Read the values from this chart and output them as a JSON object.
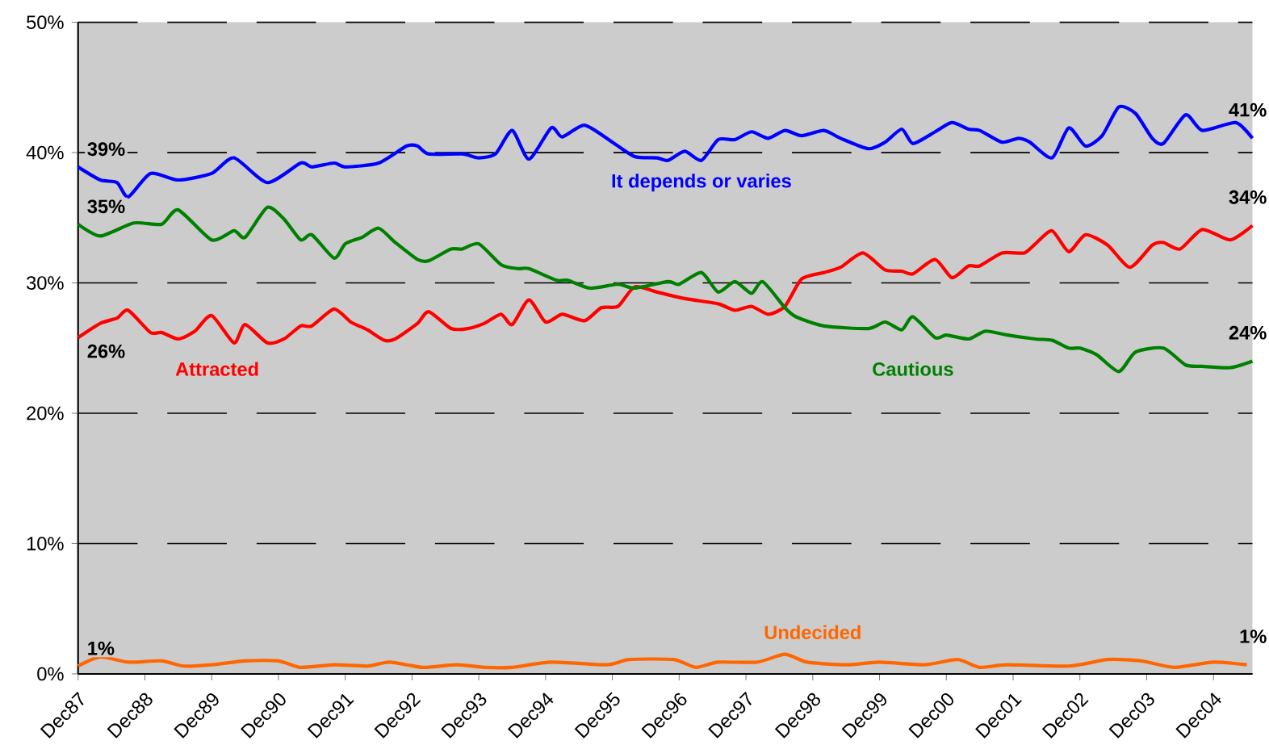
{
  "chart_data": {
    "type": "line",
    "xlim": [
      "1987-12",
      "2005-07"
    ],
    "ylim": [
      0,
      50
    ],
    "xticks": [
      {
        "value": "1987-12",
        "label": "Dec87"
      },
      {
        "value": "1988-12",
        "label": "Dec88"
      },
      {
        "value": "1989-12",
        "label": "Dec89"
      },
      {
        "value": "1990-12",
        "label": "Dec90"
      },
      {
        "value": "1991-12",
        "label": "Dec91"
      },
      {
        "value": "1992-12",
        "label": "Dec92"
      },
      {
        "value": "1993-12",
        "label": "Dec93"
      },
      {
        "value": "1994-12",
        "label": "Dec94"
      },
      {
        "value": "1995-12",
        "label": "Dec95"
      },
      {
        "value": "1996-12",
        "label": "Dec96"
      },
      {
        "value": "1997-12",
        "label": "Dec97"
      },
      {
        "value": "1998-12",
        "label": "Dec98"
      },
      {
        "value": "1999-12",
        "label": "Dec99"
      },
      {
        "value": "2000-12",
        "label": "Dec00"
      },
      {
        "value": "2001-12",
        "label": "Dec01"
      },
      {
        "value": "2002-12",
        "label": "Dec02"
      },
      {
        "value": "2003-12",
        "label": "Dec03"
      },
      {
        "value": "2004-12",
        "label": "Dec04"
      }
    ],
    "yticks": [
      {
        "value": 0,
        "label": "0%"
      },
      {
        "value": 10,
        "label": "10%"
      },
      {
        "value": 20,
        "label": "20%"
      },
      {
        "value": 30,
        "label": "30%"
      },
      {
        "value": 40,
        "label": "40%"
      },
      {
        "value": 50,
        "label": "50%"
      }
    ],
    "grid": "y",
    "legend": false,
    "marker": "none",
    "line_style": "solid",
    "series": [
      {
        "name": "It depends or varies",
        "color": "#0000ff",
        "x": [
          "1987-12",
          "1988-04",
          "1988-07",
          "1988-09",
          "1989-01",
          "1989-06",
          "1989-12",
          "1990-04",
          "1990-10",
          "1991-04",
          "1991-06",
          "1991-10",
          "1991-12",
          "1992-06",
          "1992-11",
          "1993-01",
          "1993-03",
          "1993-09",
          "1993-12",
          "1994-03",
          "1994-06",
          "1994-09",
          "1995-01",
          "1995-03",
          "1995-07",
          "1995-12",
          "1996-04",
          "1996-08",
          "1996-10",
          "1997-01",
          "1997-04",
          "1997-07",
          "1997-10",
          "1998-01",
          "1998-04",
          "1998-07",
          "1998-10",
          "1999-02",
          "1999-05",
          "1999-10",
          "2000-01",
          "2000-04",
          "2000-06",
          "2000-10",
          "2001-01",
          "2001-04",
          "2001-06",
          "2001-10",
          "2002-01",
          "2002-03",
          "2002-07",
          "2002-10",
          "2003-01",
          "2003-04",
          "2003-07",
          "2003-10",
          "2004-01",
          "2004-03",
          "2004-07",
          "2004-10",
          "2005-04",
          "2005-07"
        ],
        "values": [
          38.9,
          37.9,
          37.7,
          36.6,
          38.4,
          37.9,
          38.4,
          39.6,
          37.7,
          39.2,
          38.9,
          39.2,
          38.9,
          39.2,
          40.5,
          40.5,
          39.9,
          39.9,
          39.6,
          39.9,
          41.7,
          39.5,
          41.9,
          41.2,
          42.1,
          40.8,
          39.7,
          39.6,
          39.4,
          40.1,
          39.4,
          41.0,
          41.0,
          41.6,
          41.1,
          41.7,
          41.3,
          41.7,
          41.1,
          40.3,
          40.8,
          41.8,
          40.7,
          41.6,
          42.3,
          41.8,
          41.7,
          40.8,
          41.1,
          40.8,
          39.6,
          41.9,
          40.5,
          41.3,
          43.5,
          43.0,
          41.1,
          40.7,
          42.9,
          41.7,
          42.3,
          41.1
        ]
      },
      {
        "name": "Attracted",
        "color": "#ff0000",
        "x": [
          "1987-12",
          "1988-04",
          "1988-07",
          "1988-09",
          "1989-01",
          "1989-03",
          "1989-06",
          "1989-09",
          "1989-12",
          "1990-04",
          "1990-06",
          "1990-10",
          "1991-01",
          "1991-04",
          "1991-06",
          "1991-10",
          "1992-01",
          "1992-04",
          "1992-07",
          "1992-09",
          "1993-01",
          "1993-03",
          "1993-07",
          "1993-10",
          "1994-01",
          "1994-04",
          "1994-06",
          "1994-09",
          "1994-12",
          "1995-03",
          "1995-07",
          "1995-10",
          "1996-01",
          "1996-04",
          "1996-08",
          "1997-01",
          "1997-07",
          "1997-10",
          "1998-01",
          "1998-04",
          "1998-07",
          "1998-10",
          "1999-02",
          "1999-05",
          "1999-09",
          "2000-01",
          "2000-04",
          "2000-06",
          "2000-10",
          "2001-01",
          "2001-04",
          "2001-06",
          "2001-10",
          "2002-02",
          "2002-04",
          "2002-07",
          "2002-10",
          "2003-01",
          "2003-05",
          "2003-09",
          "2004-01",
          "2004-03",
          "2004-06",
          "2004-10",
          "2005-03",
          "2005-07"
        ],
        "values": [
          25.8,
          26.9,
          27.3,
          27.9,
          26.2,
          26.2,
          25.7,
          26.3,
          27.5,
          25.4,
          26.8,
          25.4,
          25.7,
          26.7,
          26.7,
          28.0,
          27.0,
          26.4,
          25.6,
          25.7,
          26.9,
          27.8,
          26.5,
          26.5,
          26.9,
          27.6,
          26.8,
          28.7,
          27.0,
          27.6,
          27.1,
          28.1,
          28.2,
          29.7,
          29.3,
          28.8,
          28.4,
          27.9,
          28.2,
          27.6,
          28.2,
          30.3,
          30.8,
          31.2,
          32.3,
          31.0,
          30.9,
          30.7,
          31.8,
          30.4,
          31.3,
          31.3,
          32.3,
          32.3,
          33.0,
          34.0,
          32.4,
          33.7,
          32.9,
          31.2,
          32.9,
          33.1,
          32.6,
          34.1,
          33.3,
          34.4
        ]
      },
      {
        "name": "Cautious",
        "color": "#008000",
        "x": [
          "1987-12",
          "1988-04",
          "1988-10",
          "1989-03",
          "1989-06",
          "1989-12",
          "1990-04",
          "1990-06",
          "1990-10",
          "1991-01",
          "1991-04",
          "1991-06",
          "1991-10",
          "1991-12",
          "1992-03",
          "1992-06",
          "1992-09",
          "1993-01",
          "1993-03",
          "1993-07",
          "1993-09",
          "1993-12",
          "1994-04",
          "1994-07",
          "1994-09",
          "1995-02",
          "1995-04",
          "1995-08",
          "1996-01",
          "1996-04",
          "1996-10",
          "1996-12",
          "1997-04",
          "1997-07",
          "1997-10",
          "1998-01",
          "1998-03",
          "1998-07",
          "1998-09",
          "1999-02",
          "1999-10",
          "2000-01",
          "2000-04",
          "2000-06",
          "2000-10",
          "2000-12",
          "2001-04",
          "2001-07",
          "2001-11",
          "2002-04",
          "2002-07",
          "2002-10",
          "2002-12",
          "2003-03",
          "2003-07",
          "2003-10",
          "2004-03",
          "2004-07",
          "2004-10",
          "2005-03",
          "2005-07"
        ],
        "values": [
          34.5,
          33.6,
          34.6,
          34.5,
          35.6,
          33.3,
          34.0,
          33.5,
          35.8,
          34.9,
          33.3,
          33.7,
          31.9,
          33.0,
          33.5,
          34.2,
          33.1,
          31.8,
          31.7,
          32.6,
          32.6,
          33.0,
          31.4,
          31.1,
          31.1,
          30.2,
          30.2,
          29.6,
          29.9,
          29.6,
          30.1,
          29.9,
          30.8,
          29.3,
          30.1,
          29.2,
          30.1,
          28.1,
          27.4,
          26.7,
          26.5,
          27.0,
          26.4,
          27.4,
          25.8,
          26.0,
          25.7,
          26.3,
          26.0,
          25.7,
          25.6,
          25.0,
          25.0,
          24.5,
          23.2,
          24.7,
          25.0,
          23.7,
          23.6,
          23.5,
          24.0
        ]
      },
      {
        "name": "Undecided",
        "color": "#ff6600",
        "x": [
          "1987-12",
          "1988-04",
          "1988-09",
          "1989-03",
          "1989-07",
          "1989-12",
          "1990-06",
          "1990-12",
          "1991-04",
          "1991-10",
          "1992-04",
          "1992-08",
          "1993-02",
          "1993-08",
          "1994-01",
          "1994-06",
          "1995-01",
          "1995-11",
          "1996-03",
          "1996-11",
          "1997-03",
          "1997-07",
          "1998-02",
          "1998-07",
          "1998-11",
          "1999-06",
          "1999-12",
          "2000-08",
          "2001-02",
          "2001-06",
          "2001-11",
          "2002-10",
          "2003-05",
          "2003-11",
          "2004-05",
          "2004-12",
          "2005-06"
        ],
        "values": [
          0.6,
          1.3,
          0.9,
          1.0,
          0.6,
          0.7,
          1.0,
          1.0,
          0.5,
          0.7,
          0.6,
          0.9,
          0.5,
          0.7,
          0.5,
          0.5,
          0.9,
          0.7,
          1.1,
          1.1,
          0.5,
          0.9,
          0.9,
          1.5,
          0.9,
          0.7,
          0.9,
          0.7,
          1.1,
          0.5,
          0.7,
          0.6,
          1.1,
          1.0,
          0.5,
          0.9,
          0.7
        ]
      }
    ],
    "annotations": [
      {
        "text": "39%",
        "x": "1987-12",
        "y": 38.9
      },
      {
        "text": "35%",
        "x": "1987-12",
        "y": 34.5
      },
      {
        "text": "26%",
        "x": "1987-12",
        "y": 25.8
      },
      {
        "text": "1%",
        "x": "1987-12",
        "y": 0.6
      },
      {
        "text": "41%",
        "x": "2005-07",
        "y": 41.1
      },
      {
        "text": "34%",
        "x": "2005-07",
        "y": 34.4
      },
      {
        "text": "24%",
        "x": "2005-07",
        "y": 24.0
      },
      {
        "text": "1%",
        "x": "2005-07",
        "y": 0.7
      }
    ]
  }
}
